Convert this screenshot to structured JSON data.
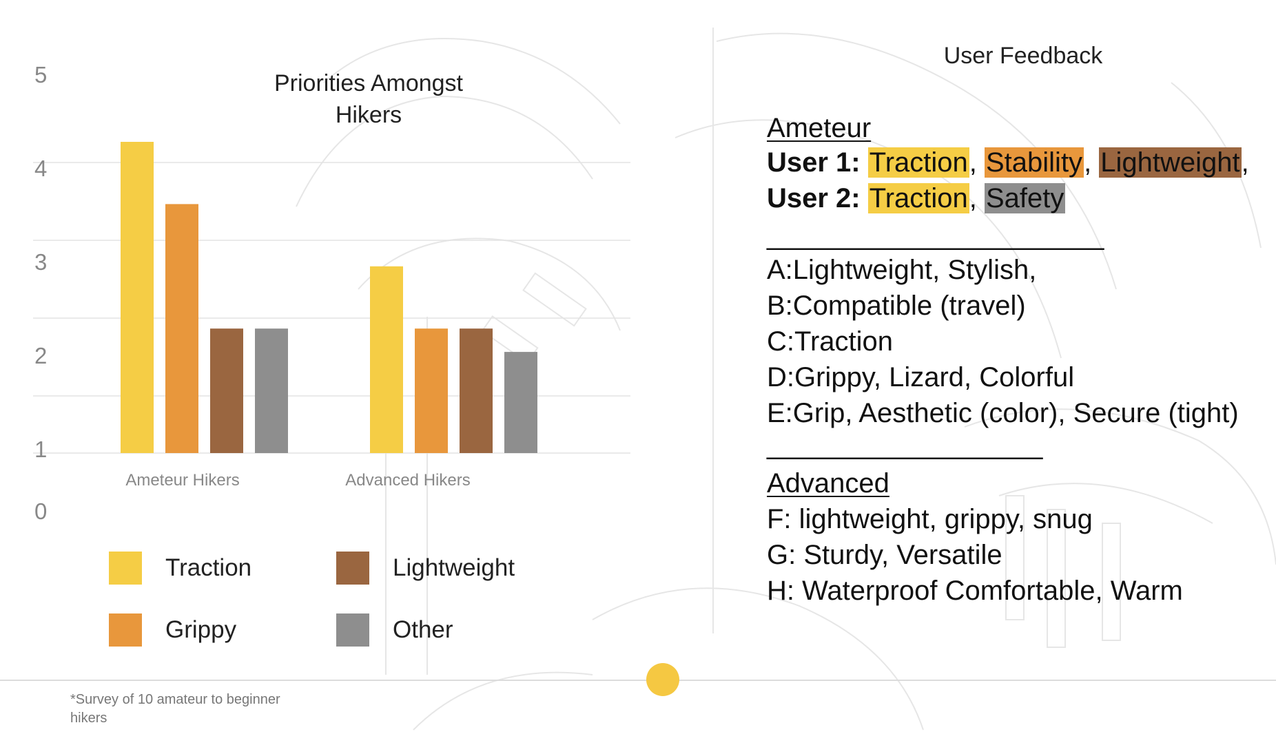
{
  "colors": {
    "traction": "#f5cd45",
    "grippy": "#e8973c",
    "lightweight": "#9a6640",
    "other": "#8e8e8e",
    "accent_dot": "#f5c842"
  },
  "chart_data": {
    "type": "bar",
    "title": "Priorities Amongst Hikers",
    "title_lines": [
      "Priorities Amongst",
      "Hikers"
    ],
    "categories": [
      "Ameteur Hikers",
      "Advanced Hikers"
    ],
    "series": [
      {
        "name": "Traction",
        "values": [
          5,
          3.4
        ]
      },
      {
        "name": "Grippy",
        "values": [
          4.2,
          2.6
        ]
      },
      {
        "name": "Lightweight",
        "values": [
          2.6,
          2.6
        ]
      },
      {
        "name": "Other",
        "values": [
          2.6,
          2.3
        ]
      }
    ],
    "y_ticks": [
      "0",
      "1",
      "2",
      "3",
      "4",
      "5"
    ],
    "ylim": [
      0,
      5
    ],
    "grid": true,
    "legend_position": "bottom"
  },
  "legend": [
    {
      "label": "Traction",
      "color": "#f5cd45"
    },
    {
      "label": "Grippy",
      "color": "#e8973c"
    },
    {
      "label": "Lightweight",
      "color": "#9a6640"
    },
    {
      "label": "Other",
      "color": "#8e8e8e"
    }
  ],
  "footnote": "*Survey of 10 amateur to beginner hikers",
  "feedback": {
    "title": "User Feedback",
    "ameteur_heading": "Ameteur",
    "user1": {
      "label": "User 1:",
      "items": [
        "Traction",
        "Stability",
        "Lightweight"
      ]
    },
    "user2": {
      "label": "User 2:",
      "items": [
        "Traction",
        "Safety"
      ]
    },
    "separator1": "______________________",
    "list1": [
      "A:Lightweight, Stylish,",
      "B:Compatible (travel)",
      "C:Traction",
      "D:Grippy, Lizard, Colorful",
      "E:Grip, Aesthetic (color), Secure (tight)"
    ],
    "separator2": "__________________",
    "advanced_heading": "Advanced",
    "list2": [
      "F: lightweight, grippy, snug",
      "G: Sturdy, Versatile",
      "H: Waterproof Comfortable, Warm"
    ]
  }
}
